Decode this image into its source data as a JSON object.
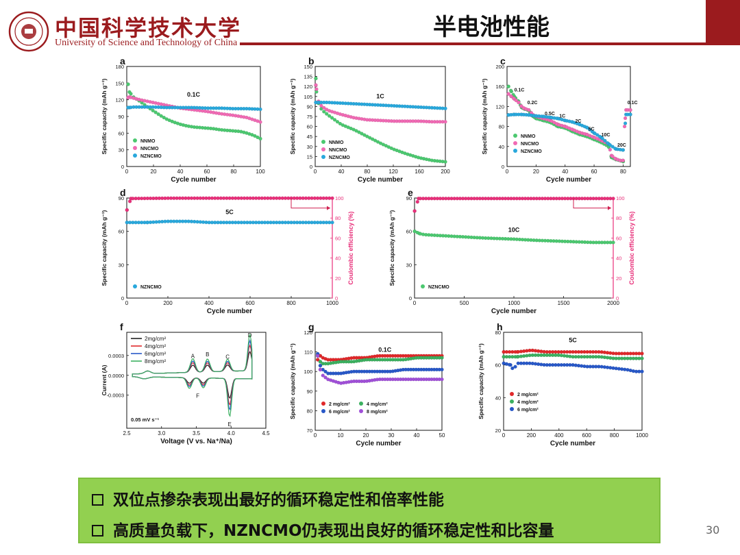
{
  "header": {
    "school_cn": "中国科学技术大学",
    "school_en": "University of Science and Technology of China",
    "title": "半电池性能",
    "accent_color": "#9b1b1e"
  },
  "notes": [
    "双位点掺杂表现出最好的循环稳定性和倍率性能",
    "高质量负载下，NZNCMO仍表现出良好的循环稳定性和比容量"
  ],
  "page_number": "30",
  "colors": {
    "NNMO": "#4cc870",
    "NNCMO": "#f06ab4",
    "NZNCMO": "#29a8dc",
    "CE": "#e8307a",
    "mg2": "#e0282a",
    "mg4": "#3cb060",
    "mg6": "#2858c8",
    "mg8": "#a050d8",
    "arrow": "#d02050"
  },
  "chart_data": [
    {
      "id": "a",
      "type": "scatter",
      "title": "0.1C",
      "xlabel": "Cycle number",
      "ylabel": "Specific capacity (mAh g⁻¹)",
      "xlim": [
        0,
        100
      ],
      "ylim": [
        0,
        180
      ],
      "xticks": [
        0,
        20,
        40,
        60,
        80,
        100
      ],
      "yticks": [
        0,
        30,
        60,
        90,
        120,
        150,
        180
      ],
      "legend": "bottom-left",
      "series": [
        {
          "name": "NNMO",
          "color": "#4cc870",
          "x": [
            1,
            2,
            5,
            10,
            15,
            20,
            25,
            30,
            35,
            40,
            45,
            50,
            55,
            60,
            65,
            70,
            75,
            80,
            85,
            90,
            95,
            100
          ],
          "y": [
            148,
            134,
            125,
            117,
            108,
            100,
            92,
            85,
            80,
            76,
            73,
            71,
            70,
            69,
            68,
            66,
            65,
            64,
            63,
            60,
            56,
            50
          ]
        },
        {
          "name": "NNCMO",
          "color": "#f06ab4",
          "x": [
            1,
            2,
            5,
            10,
            20,
            30,
            40,
            50,
            60,
            70,
            80,
            90,
            95,
            100
          ],
          "y": [
            124,
            125,
            123,
            120,
            115,
            110,
            105,
            102,
            99,
            95,
            92,
            88,
            84,
            80
          ]
        },
        {
          "name": "NZNCMO",
          "color": "#29a8dc",
          "x": [
            1,
            2,
            5,
            10,
            20,
            30,
            40,
            50,
            60,
            70,
            80,
            90,
            100
          ],
          "y": [
            106,
            106,
            107,
            107,
            107,
            106,
            106,
            106,
            105,
            105,
            104,
            104,
            103
          ]
        }
      ]
    },
    {
      "id": "b",
      "type": "scatter",
      "title": "1C",
      "xlabel": "Cycle number",
      "ylabel": "Specific capacity (mAh g⁻¹)",
      "xlim": [
        0,
        200
      ],
      "ylim": [
        0,
        150
      ],
      "xticks": [
        0,
        40,
        80,
        120,
        160,
        200
      ],
      "yticks": [
        0,
        15,
        30,
        45,
        60,
        75,
        90,
        105,
        120,
        135,
        150
      ],
      "legend": "bottom-left",
      "series": [
        {
          "name": "NNMO",
          "color": "#4cc870",
          "x": [
            1,
            2,
            5,
            10,
            20,
            30,
            40,
            60,
            80,
            100,
            120,
            140,
            160,
            180,
            200
          ],
          "y": [
            132,
            112,
            95,
            85,
            77,
            70,
            63,
            55,
            45,
            35,
            26,
            19,
            13,
            9,
            7
          ]
        },
        {
          "name": "NNCMO",
          "color": "#f06ab4",
          "x": [
            1,
            2,
            5,
            10,
            20,
            40,
            60,
            80,
            100,
            120,
            140,
            160,
            180,
            200
          ],
          "y": [
            122,
            116,
            98,
            90,
            84,
            78,
            73,
            70,
            69,
            68,
            68,
            68,
            67,
            67
          ]
        },
        {
          "name": "NZNCMO",
          "color": "#29a8dc",
          "x": [
            1,
            5,
            20,
            40,
            60,
            80,
            100,
            120,
            140,
            160,
            180,
            200
          ],
          "y": [
            96,
            96,
            96,
            95,
            94,
            93,
            92,
            91,
            90,
            89,
            88,
            87
          ]
        }
      ]
    },
    {
      "id": "c",
      "type": "scatter",
      "title": "",
      "xlabel": "Cycle number",
      "ylabel": "Specific capacity (mAh g⁻¹)",
      "xlim": [
        0,
        85
      ],
      "ylim": [
        0,
        200
      ],
      "xticks": [
        0,
        20,
        40,
        60,
        80
      ],
      "yticks": [
        0,
        40,
        80,
        120,
        160,
        200
      ],
      "legend": "bottom-left",
      "annotations": [
        "0.1C",
        "0.2C",
        "0.5C",
        "1C",
        "2C",
        "5C",
        "10C",
        "20C",
        "0.1C"
      ],
      "series": [
        {
          "name": "NNMO",
          "color": "#4cc870",
          "x": [
            1,
            3,
            5,
            8,
            10,
            12,
            15,
            18,
            20,
            25,
            30,
            35,
            40,
            45,
            50,
            55,
            60,
            65,
            70,
            72,
            75,
            80
          ],
          "y": [
            160,
            150,
            140,
            130,
            118,
            115,
            112,
            100,
            96,
            92,
            88,
            80,
            77,
            70,
            64,
            60,
            54,
            48,
            40,
            18,
            14,
            10
          ]
        },
        {
          "name": "NNCMO",
          "color": "#f06ab4",
          "x": [
            1,
            3,
            5,
            8,
            10,
            12,
            15,
            18,
            20,
            25,
            30,
            35,
            40,
            45,
            50,
            55,
            60,
            65,
            70,
            72,
            75,
            78,
            80,
            81,
            82,
            85
          ],
          "y": [
            145,
            140,
            135,
            128,
            120,
            116,
            113,
            103,
            100,
            96,
            92,
            84,
            80,
            74,
            68,
            64,
            58,
            52,
            45,
            22,
            15,
            12,
            12,
            80,
            113,
            113
          ]
        },
        {
          "name": "NZNCMO",
          "color": "#29a8dc",
          "x": [
            1,
            5,
            10,
            15,
            20,
            25,
            30,
            35,
            40,
            45,
            50,
            55,
            60,
            65,
            70,
            75,
            80,
            82,
            85
          ],
          "y": [
            103,
            104,
            104,
            103,
            101,
            100,
            98,
            96,
            92,
            89,
            84,
            78,
            67,
            58,
            45,
            35,
            33,
            104,
            104
          ]
        }
      ]
    },
    {
      "id": "d",
      "type": "scatter",
      "title": "5C",
      "xlabel": "Cycle number",
      "ylabel": "Specific capacity (mAh g⁻¹)",
      "y2label": "Coulombic efficiency (%)",
      "xlim": [
        0,
        1000
      ],
      "ylim": [
        0,
        90
      ],
      "y2lim": [
        0,
        100
      ],
      "xticks": [
        0,
        200,
        400,
        600,
        800,
        1000
      ],
      "yticks": [
        0,
        30,
        60,
        90
      ],
      "y2ticks": [
        0,
        20,
        40,
        60,
        80,
        100
      ],
      "legend": "bottom-left",
      "series": [
        {
          "name": "NZNCMO",
          "color": "#29a8dc",
          "x": [
            1,
            100,
            200,
            300,
            400,
            500,
            600,
            700,
            800,
            900,
            1000
          ],
          "y": [
            68,
            68,
            69,
            69,
            68,
            68,
            68,
            68,
            68,
            68,
            68
          ]
        },
        {
          "name": "Coulombic efficiency",
          "color": "#e8307a",
          "axis": "y2",
          "x": [
            1,
            20,
            200,
            400,
            600,
            800,
            1000
          ],
          "y": [
            88,
            99.5,
            99.8,
            99.8,
            99.8,
            99.8,
            99.8
          ]
        }
      ]
    },
    {
      "id": "e",
      "type": "scatter",
      "title": "10C",
      "xlabel": "Cycle number",
      "ylabel": "Specific capacity (mAh g⁻¹)",
      "y2label": "Coulombic efficiency (%)",
      "xlim": [
        0,
        2000
      ],
      "ylim": [
        0,
        90
      ],
      "y2lim": [
        0,
        100
      ],
      "xticks": [
        0,
        500,
        1000,
        1500,
        2000
      ],
      "yticks": [
        0,
        30,
        60,
        90
      ],
      "y2ticks": [
        0,
        20,
        40,
        60,
        80,
        100
      ],
      "legend": "bottom-left",
      "series": [
        {
          "name": "NZNCMO",
          "color": "#4cc870",
          "x": [
            1,
            50,
            100,
            300,
            500,
            700,
            1000,
            1200,
            1500,
            1800,
            2000
          ],
          "y": [
            60,
            58,
            57,
            56,
            55,
            54,
            53,
            52,
            51,
            50,
            50
          ]
        },
        {
          "name": "Coulombic efficiency",
          "color": "#e8307a",
          "axis": "y2",
          "x": [
            1,
            40,
            500,
            1000,
            1500,
            2000
          ],
          "y": [
            87,
            99.5,
            99.5,
            99.5,
            99.5,
            99.5
          ]
        }
      ]
    },
    {
      "id": "f",
      "type": "line",
      "title": "",
      "xlabel": "Voltage (V vs. Na⁺/Na)",
      "ylabel": "Current (A)",
      "xlim": [
        2.5,
        4.5
      ],
      "ylim": [
        -0.0008,
        0.00065
      ],
      "xticks": [
        2.5,
        3.0,
        3.5,
        4.0,
        4.5
      ],
      "yticks": [
        -0.0003,
        0.0,
        0.0003
      ],
      "xtick_labels": [
        "2.5",
        "3.0",
        "3.5",
        "4.0",
        "4.5"
      ],
      "ytick_labels": [
        "-0.0003",
        "0.0000",
        "0.0003"
      ],
      "legend": "top-left",
      "annotations": [
        "A",
        "B",
        "C",
        "D",
        "E",
        "F",
        "0.05 mV s⁻¹"
      ],
      "series": [
        {
          "name": "2mg/cm²",
          "color": "#222222"
        },
        {
          "name": "4mg/cm²",
          "color": "#e0282a"
        },
        {
          "name": "6mg/cm²",
          "color": "#2858c8"
        },
        {
          "name": "8mg/cm²",
          "color": "#3cb060"
        }
      ]
    },
    {
      "id": "g",
      "type": "scatter",
      "title": "0.1C",
      "xlabel": "Cycle number",
      "ylabel": "Specific capacity (mAh g⁻¹)",
      "xlim": [
        0,
        50
      ],
      "ylim": [
        70,
        120
      ],
      "xticks": [
        0,
        10,
        20,
        30,
        40,
        50
      ],
      "yticks": [
        70,
        80,
        90,
        100,
        110,
        120
      ],
      "legend": "bottom-left",
      "series": [
        {
          "name": "2 mg/cm²",
          "color": "#e0282a",
          "x": [
            1,
            2,
            3,
            5,
            10,
            15,
            20,
            25,
            30,
            35,
            40,
            45,
            50
          ],
          "y": [
            106,
            108,
            107,
            106,
            106,
            107,
            107,
            108,
            108,
            108,
            108,
            108,
            108
          ]
        },
        {
          "name": "4 mg/cm²",
          "color": "#3cb060",
          "x": [
            1,
            2,
            3,
            5,
            10,
            15,
            20,
            25,
            30,
            35,
            40,
            45,
            50
          ],
          "y": [
            108,
            105,
            104,
            104,
            105,
            105,
            106,
            106,
            106,
            106,
            107,
            107,
            107
          ]
        },
        {
          "name": "6 mg/cm²",
          "color": "#2858c8",
          "x": [
            1,
            2,
            3,
            5,
            10,
            15,
            20,
            25,
            30,
            35,
            40,
            45,
            50
          ],
          "y": [
            109,
            103,
            101,
            99,
            99,
            100,
            100,
            100,
            100,
            101,
            101,
            101,
            101
          ]
        },
        {
          "name": "8 mg/cm²",
          "color": "#a050d8",
          "x": [
            1,
            2,
            3,
            5,
            10,
            15,
            20,
            25,
            30,
            35,
            40,
            45,
            50
          ],
          "y": [
            108,
            101,
            98,
            96,
            94,
            95,
            95,
            96,
            96,
            96,
            96,
            96,
            96
          ]
        }
      ]
    },
    {
      "id": "h",
      "type": "scatter",
      "title": "5C",
      "xlabel": "Cycle number",
      "ylabel": "Specific capacity (mAh g⁻¹)",
      "xlim": [
        0,
        1000
      ],
      "ylim": [
        20,
        80
      ],
      "xticks": [
        0,
        200,
        400,
        600,
        800,
        1000
      ],
      "yticks": [
        20,
        40,
        60,
        80
      ],
      "legend": "bottom-left",
      "series": [
        {
          "name": "2 mg/cm²",
          "color": "#e0282a",
          "x": [
            1,
            100,
            200,
            300,
            400,
            500,
            600,
            700,
            800,
            900,
            1000
          ],
          "y": [
            68,
            68,
            69,
            68,
            68,
            68,
            68,
            68,
            67,
            67,
            67
          ]
        },
        {
          "name": "4 mg/cm²",
          "color": "#3cb060",
          "x": [
            1,
            100,
            200,
            300,
            400,
            500,
            600,
            700,
            800,
            900,
            1000
          ],
          "y": [
            65,
            65,
            66,
            66,
            66,
            65,
            65,
            65,
            64,
            64,
            64
          ]
        },
        {
          "name": "6 mg/cm²",
          "color": "#2858c8",
          "x": [
            1,
            50,
            70,
            100,
            200,
            300,
            400,
            500,
            600,
            700,
            800,
            900,
            950,
            1000
          ],
          "y": [
            61,
            60,
            57,
            61,
            61,
            60,
            60,
            60,
            59,
            59,
            58,
            57,
            56,
            56
          ]
        }
      ]
    }
  ]
}
